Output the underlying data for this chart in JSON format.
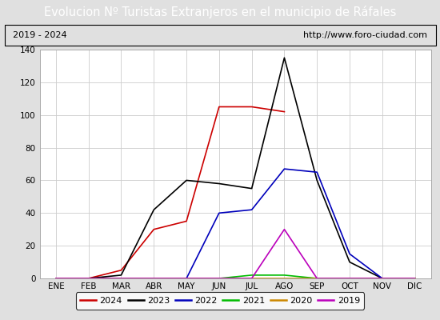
{
  "title": "Evolucion Nº Turistas Extranjeros en el municipio de Ráfales",
  "subtitle_left": "2019 - 2024",
  "subtitle_right": "http://www.foro-ciudad.com",
  "title_bg_color": "#4472c4",
  "title_text_color": "#ffffff",
  "months": [
    "ENE",
    "FEB",
    "MAR",
    "ABR",
    "MAY",
    "JUN",
    "JUL",
    "AGO",
    "SEP",
    "OCT",
    "NOV",
    "DIC"
  ],
  "series": {
    "2024": {
      "color": "#cc0000",
      "data": [
        0,
        0,
        5,
        30,
        35,
        105,
        105,
        102,
        null,
        null,
        null,
        null
      ]
    },
    "2023": {
      "color": "#000000",
      "data": [
        0,
        0,
        2,
        42,
        60,
        58,
        55,
        135,
        60,
        10,
        0,
        0
      ]
    },
    "2022": {
      "color": "#0000bb",
      "data": [
        0,
        0,
        0,
        0,
        0,
        40,
        42,
        67,
        65,
        15,
        0,
        0
      ]
    },
    "2021": {
      "color": "#00bb00",
      "data": [
        0,
        0,
        0,
        0,
        0,
        0,
        2,
        2,
        0,
        0,
        0,
        0
      ]
    },
    "2020": {
      "color": "#cc8800",
      "data": [
        0,
        0,
        0,
        0,
        0,
        0,
        0,
        0,
        0,
        0,
        0,
        0
      ]
    },
    "2019": {
      "color": "#bb00bb",
      "data": [
        0,
        0,
        0,
        0,
        0,
        0,
        0,
        30,
        0,
        0,
        0,
        0
      ]
    }
  },
  "ylim": [
    0,
    140
  ],
  "yticks": [
    0,
    20,
    40,
    60,
    80,
    100,
    120,
    140
  ],
  "plot_bg_color": "#ffffff",
  "outer_bg_color": "#e0e0e0",
  "grid_color": "#cccccc",
  "title_fontsize": 10.5,
  "subtitle_fontsize": 8,
  "tick_fontsize": 7.5
}
